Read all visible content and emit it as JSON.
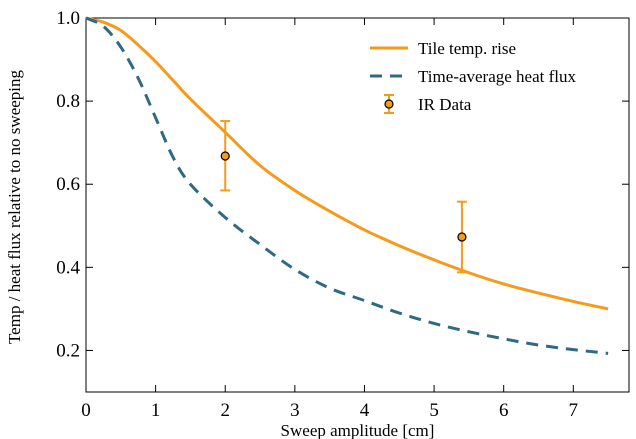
{
  "chart_data": {
    "type": "line",
    "title": "",
    "xlabel": "Sweep amplitude [cm]",
    "ylabel": "Temp / heat flux relative to no sweeping",
    "xlim": [
      0,
      7.8
    ],
    "ylim": [
      0.1,
      1.0
    ],
    "xticks": [
      0,
      1,
      2,
      3,
      4,
      5,
      6,
      7
    ],
    "yticks": [
      0.2,
      0.4,
      0.6,
      0.8,
      1.0
    ],
    "xtick_labels": [
      "0",
      "1",
      "2",
      "3",
      "4",
      "5",
      "6",
      "7"
    ],
    "ytick_labels": [
      "0.2",
      "0.4",
      "0.6",
      "0.8",
      "1.0"
    ],
    "grid": false,
    "legend_position": "top-right",
    "series": [
      {
        "name": "Tile temp. rise",
        "style": "solid",
        "color": "#f59a1b",
        "x": [
          0,
          0.25,
          0.5,
          0.75,
          1.0,
          1.25,
          1.5,
          2.0,
          2.5,
          3.0,
          3.5,
          4.0,
          4.5,
          5.0,
          5.5,
          6.0,
          6.5,
          7.0,
          7.5
        ],
        "y": [
          1.0,
          0.99,
          0.97,
          0.935,
          0.895,
          0.85,
          0.805,
          0.725,
          0.645,
          0.585,
          0.535,
          0.49,
          0.452,
          0.418,
          0.387,
          0.36,
          0.338,
          0.318,
          0.3
        ]
      },
      {
        "name": "Time-average heat flux",
        "style": "dashed",
        "color": "#2e6a84",
        "x": [
          0,
          0.25,
          0.5,
          0.75,
          1.0,
          1.25,
          1.5,
          2.0,
          2.5,
          3.0,
          3.5,
          4.0,
          4.5,
          5.0,
          5.5,
          6.0,
          6.5,
          7.0,
          7.5
        ],
        "y": [
          1.0,
          0.98,
          0.93,
          0.855,
          0.76,
          0.665,
          0.6,
          0.52,
          0.455,
          0.395,
          0.35,
          0.32,
          0.29,
          0.265,
          0.245,
          0.228,
          0.213,
          0.202,
          0.193
        ]
      },
      {
        "name": "IR Data",
        "style": "markers",
        "color": "#f59a1b",
        "marker_edge": "#000000",
        "x": [
          2.0,
          5.4
        ],
        "y": [
          0.668,
          0.473
        ],
        "yerr_low": [
          0.585,
          0.388
        ],
        "yerr_high": [
          0.752,
          0.558
        ]
      }
    ]
  }
}
